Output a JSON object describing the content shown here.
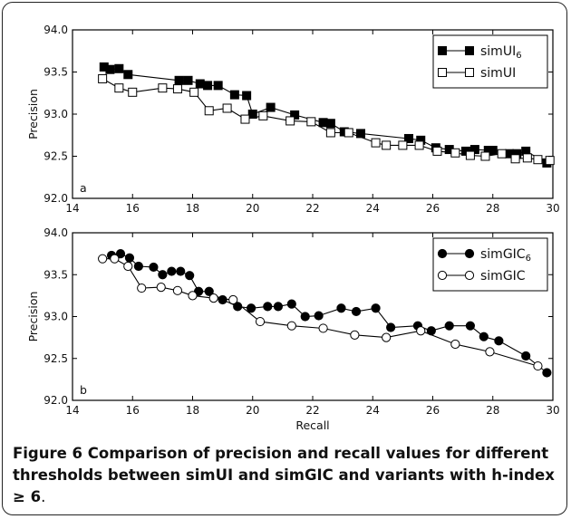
{
  "figure": {
    "caption_label": "Figure 6",
    "caption_text": "Comparison of precision and recall values for different thresholds between simUI and simGIC and variants with h-index ≥ 6",
    "caption_end": "."
  },
  "colors": {
    "line": "#000000",
    "filled_marker": "#000000",
    "open_marker": "#ffffff"
  },
  "chart_data": [
    {
      "type": "line",
      "panel_label": "a",
      "xlabel": "",
      "ylabel": "Precision",
      "xlim": [
        14,
        30
      ],
      "ylim": [
        92.0,
        94.0
      ],
      "xticks": [
        "14",
        "16",
        "18",
        "20",
        "22",
        "24",
        "26",
        "28",
        "30"
      ],
      "yticks": [
        "92.0",
        "92.5",
        "93.0",
        "93.5",
        "94.0"
      ],
      "legend_position": "top-right",
      "series": [
        {
          "name": "simUI",
          "name_sub": "6",
          "marker": "square-filled",
          "x": [
            15.05,
            15.25,
            15.55,
            15.85,
            17.55,
            17.85,
            18.25,
            18.5,
            18.85,
            19.4,
            19.8,
            20.0,
            20.6,
            21.4,
            22.35,
            22.6,
            23.05,
            23.6,
            25.2,
            25.6,
            26.1,
            26.55,
            27.1,
            27.4,
            27.85,
            28.0,
            28.55,
            28.8,
            29.1,
            29.8
          ],
          "y": [
            93.56,
            93.53,
            93.54,
            93.47,
            93.4,
            93.4,
            93.36,
            93.34,
            93.34,
            93.23,
            93.22,
            93.0,
            93.08,
            92.99,
            92.9,
            92.89,
            92.79,
            92.77,
            92.71,
            92.69,
            92.6,
            92.58,
            92.56,
            92.58,
            92.57,
            92.57,
            92.53,
            92.53,
            92.56,
            92.42
          ]
        },
        {
          "name": "simUI",
          "name_sub": "",
          "marker": "square-open",
          "x": [
            15.0,
            15.55,
            16.0,
            17.0,
            17.5,
            18.05,
            18.55,
            19.15,
            19.75,
            20.35,
            21.25,
            21.95,
            22.6,
            23.2,
            24.1,
            24.45,
            25.0,
            25.55,
            26.15,
            26.75,
            27.25,
            27.75,
            28.3,
            28.75,
            29.15,
            29.5,
            29.9
          ],
          "y": [
            93.42,
            93.31,
            93.26,
            93.31,
            93.3,
            93.26,
            93.04,
            93.07,
            92.94,
            92.98,
            92.92,
            92.91,
            92.78,
            92.78,
            92.66,
            92.63,
            92.63,
            92.63,
            92.56,
            92.54,
            92.51,
            92.5,
            92.53,
            92.47,
            92.48,
            92.46,
            92.45
          ]
        }
      ]
    },
    {
      "type": "line",
      "panel_label": "b",
      "xlabel": "Recall",
      "ylabel": "Precision",
      "xlim": [
        14,
        30
      ],
      "ylim": [
        92.0,
        94.0
      ],
      "xticks": [
        "14",
        "16",
        "18",
        "20",
        "22",
        "24",
        "26",
        "28",
        "30"
      ],
      "yticks": [
        "92.0",
        "92.5",
        "93.0",
        "93.5",
        "94.0"
      ],
      "legend_position": "top-right",
      "series": [
        {
          "name": "simGIC",
          "name_sub": "6",
          "marker": "circle-filled",
          "x": [
            15.3,
            15.6,
            15.9,
            16.2,
            16.7,
            17.0,
            17.3,
            17.6,
            17.9,
            18.2,
            18.55,
            19.0,
            19.5,
            19.95,
            20.5,
            20.85,
            21.3,
            21.75,
            22.2,
            22.95,
            23.45,
            24.1,
            24.6,
            25.5,
            25.95,
            26.55,
            27.25,
            27.7,
            28.2,
            29.1,
            29.8
          ],
          "y": [
            93.73,
            93.75,
            93.7,
            93.6,
            93.59,
            93.5,
            93.54,
            93.54,
            93.49,
            93.3,
            93.3,
            93.2,
            93.12,
            93.1,
            93.12,
            93.12,
            93.15,
            93.0,
            93.01,
            93.1,
            93.06,
            93.1,
            92.87,
            92.89,
            92.83,
            92.89,
            92.89,
            92.76,
            92.71,
            92.53,
            92.33
          ]
        },
        {
          "name": "simGIC",
          "name_sub": "",
          "marker": "circle-open",
          "x": [
            15.0,
            15.4,
            15.85,
            16.3,
            16.95,
            17.5,
            18.0,
            18.7,
            19.35,
            20.25,
            21.3,
            22.35,
            23.4,
            24.45,
            25.6,
            26.75,
            27.9,
            29.5
          ],
          "y": [
            93.69,
            93.69,
            93.6,
            93.34,
            93.35,
            93.31,
            93.25,
            93.22,
            93.2,
            92.94,
            92.89,
            92.86,
            92.78,
            92.75,
            92.83,
            92.67,
            92.58,
            92.41
          ]
        }
      ]
    }
  ]
}
